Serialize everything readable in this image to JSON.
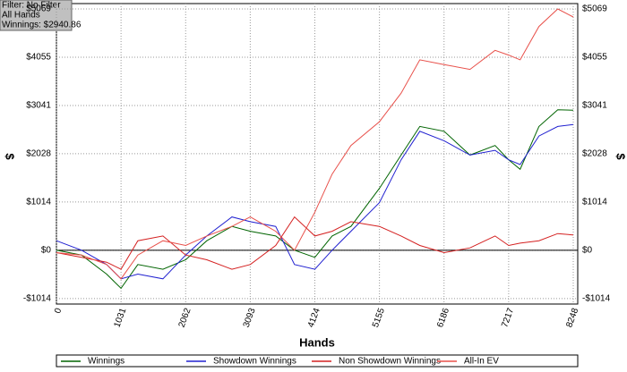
{
  "chart_data": {
    "type": "line",
    "info": [
      "Filter: No Filter",
      "All Hands",
      "Winnings: $2940.86"
    ],
    "x_label": "Hands",
    "y_label": "$",
    "x": [
      0,
      400,
      800,
      1031,
      1300,
      1700,
      2062,
      2400,
      2800,
      3093,
      3500,
      3800,
      4124,
      4400,
      4700,
      5155,
      5500,
      5800,
      6186,
      6600,
      7000,
      7217,
      7400,
      7700,
      8000,
      8248
    ],
    "series": [
      {
        "name": "Winnings",
        "color": "#006400",
        "values": [
          0,
          -100,
          -500,
          -800,
          -300,
          -400,
          -200,
          200,
          500,
          400,
          300,
          0,
          -150,
          300,
          500,
          1300,
          2000,
          2600,
          2500,
          2000,
          2200,
          1900,
          1700,
          2600,
          2950,
          2940.86
        ]
      },
      {
        "name": "Showdown Winnings",
        "color": "#2020d0",
        "values": [
          200,
          0,
          -300,
          -600,
          -500,
          -600,
          -100,
          300,
          700,
          600,
          500,
          -300,
          -400,
          0,
          400,
          1000,
          1900,
          2500,
          2300,
          2000,
          2100,
          1900,
          1800,
          2400,
          2600,
          2640
        ]
      },
      {
        "name": "Non Showdown Winnings",
        "color": "#d42020",
        "values": [
          -50,
          -150,
          -250,
          -400,
          200,
          300,
          -100,
          -200,
          -400,
          -300,
          100,
          700,
          300,
          400,
          600,
          500,
          300,
          100,
          -50,
          50,
          300,
          100,
          150,
          200,
          350,
          320
        ]
      },
      {
        "name": "All-In EV",
        "color": "#e8504a",
        "values": [
          -50,
          -100,
          -300,
          -600,
          -100,
          200,
          100,
          300,
          500,
          700,
          400,
          0,
          800,
          1600,
          2200,
          2700,
          3300,
          4000,
          3900,
          3800,
          4200,
          4100,
          4000,
          4700,
          5069,
          4900
        ]
      }
    ],
    "xlim": [
      0,
      8248
    ],
    "xticks": [
      0,
      1031,
      2062,
      3093,
      4124,
      5155,
      6186,
      7217,
      8248
    ],
    "ylim": [
      -1130,
      5069
    ],
    "yticks": [
      {
        "value": -1014,
        "label": "-$1014"
      },
      {
        "value": 0,
        "label": "$0"
      },
      {
        "value": 1014,
        "label": "$1014"
      },
      {
        "value": 2028,
        "label": "$2028"
      },
      {
        "value": 3041,
        "label": "$3041"
      },
      {
        "value": 4055,
        "label": "$4055"
      },
      {
        "value": 5069,
        "label": "$5069"
      }
    ],
    "grid": true
  }
}
